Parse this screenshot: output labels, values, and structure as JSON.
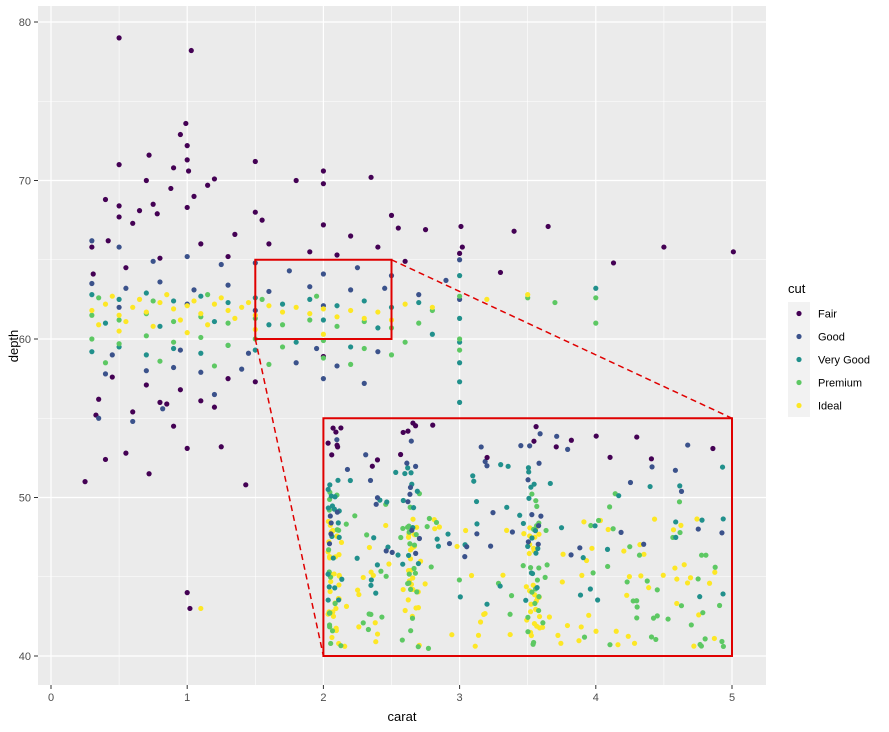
{
  "chart_data": {
    "type": "scatter",
    "xlabel": "carat",
    "ylabel": "depth",
    "xlim": [
      0,
      5
    ],
    "ylim": [
      40,
      80
    ],
    "x_ticks": [
      0,
      1,
      2,
      3,
      4,
      5
    ],
    "y_ticks": [
      40,
      50,
      60,
      70,
      80
    ],
    "grid": true,
    "legend": {
      "title": "cut",
      "position": "right",
      "entries": [
        "Fair",
        "Good",
        "Very Good",
        "Premium",
        "Ideal"
      ]
    },
    "colors": {
      "Fair": "#440154",
      "Good": "#3b528b",
      "Very Good": "#21908c",
      "Premium": "#5dc863",
      "Ideal": "#fde725",
      "panel": "#ebebeb",
      "grid": "#ffffff",
      "zoom_box": "#e00000"
    },
    "zoom": {
      "source_x": [
        1.5,
        2.5
      ],
      "source_y": [
        60,
        65
      ],
      "inset_x": [
        2,
        5
      ],
      "inset_y": [
        40,
        55
      ]
    },
    "series": [
      {
        "name": "Fair",
        "points": [
          [
            0.5,
            79
          ],
          [
            1.03,
            78.2
          ],
          [
            0.99,
            73.6
          ],
          [
            0.95,
            72.9
          ],
          [
            1.0,
            72.2
          ],
          [
            1.5,
            71.2
          ],
          [
            0.5,
            71.0
          ],
          [
            0.9,
            70.8
          ],
          [
            1.01,
            70.6
          ],
          [
            0.72,
            71.6
          ],
          [
            2.0,
            70.6
          ],
          [
            1.2,
            70.1
          ],
          [
            0.7,
            70.0
          ],
          [
            2.35,
            70.2
          ],
          [
            1.8,
            70.0
          ],
          [
            2.0,
            69.8
          ],
          [
            0.4,
            68.8
          ],
          [
            0.5,
            68.4
          ],
          [
            1.0,
            68.3
          ],
          [
            0.75,
            68.5
          ],
          [
            1.5,
            68.0
          ],
          [
            2.5,
            67.8
          ],
          [
            3.01,
            67.1
          ],
          [
            3.4,
            66.8
          ],
          [
            3.65,
            67.1
          ],
          [
            4.5,
            65.8
          ],
          [
            5.01,
            65.5
          ],
          [
            4.13,
            64.8
          ],
          [
            2.75,
            66.9
          ],
          [
            2.0,
            67.2
          ],
          [
            1.55,
            67.5
          ],
          [
            0.31,
            64.1
          ],
          [
            0.55,
            64.5
          ],
          [
            0.8,
            65.1
          ],
          [
            1.1,
            66.0
          ],
          [
            1.3,
            65.2
          ],
          [
            2.2,
            66.5
          ],
          [
            0.33,
            55.2
          ],
          [
            0.4,
            52.4
          ],
          [
            0.55,
            52.8
          ],
          [
            0.72,
            51.5
          ],
          [
            0.25,
            51.0
          ],
          [
            0.9,
            54.5
          ],
          [
            1.0,
            53.1
          ],
          [
            1.25,
            53.2
          ],
          [
            1.43,
            50.8
          ],
          [
            0.8,
            56.0
          ],
          [
            1.1,
            56.1
          ],
          [
            1.02,
            43.0
          ],
          [
            1.0,
            44.0
          ],
          [
            0.35,
            56.2
          ],
          [
            0.6,
            55.4
          ],
          [
            0.85,
            55.9
          ],
          [
            1.2,
            55.7
          ],
          [
            1.5,
            57.3
          ],
          [
            0.45,
            57.6
          ],
          [
            0.7,
            57.1
          ],
          [
            0.95,
            56.8
          ],
          [
            1.3,
            57.5
          ],
          [
            2.0,
            58.9
          ],
          [
            0.3,
            65.8
          ],
          [
            0.42,
            66.2
          ],
          [
            0.6,
            67.3
          ],
          [
            0.78,
            67.9
          ],
          [
            1.05,
            69.0
          ],
          [
            1.35,
            66.6
          ],
          [
            1.6,
            66.0
          ],
          [
            1.9,
            65.5
          ],
          [
            2.1,
            65.3
          ],
          [
            2.4,
            65.8
          ],
          [
            2.6,
            64.9
          ],
          [
            3.0,
            65.4
          ],
          [
            3.3,
            64.2
          ],
          [
            0.5,
            67.7
          ],
          [
            0.88,
            69.5
          ],
          [
            1.0,
            71.3
          ],
          [
            1.15,
            69.7
          ],
          [
            0.65,
            68.1
          ],
          [
            2.55,
            67.0
          ],
          [
            3.02,
            65.8
          ]
        ]
      },
      {
        "name": "Good",
        "points": [
          [
            0.3,
            66.2
          ],
          [
            0.5,
            65.8
          ],
          [
            0.75,
            64.9
          ],
          [
            1.0,
            65.2
          ],
          [
            1.25,
            64.7
          ],
          [
            1.5,
            64.8
          ],
          [
            1.75,
            64.3
          ],
          [
            2.0,
            64.1
          ],
          [
            2.25,
            64.5
          ],
          [
            2.5,
            64.0
          ],
          [
            0.4,
            57.8
          ],
          [
            0.7,
            58.0
          ],
          [
            0.9,
            58.2
          ],
          [
            1.1,
            57.9
          ],
          [
            1.4,
            58.1
          ],
          [
            1.8,
            58.5
          ],
          [
            2.1,
            58.3
          ],
          [
            0.35,
            55.0
          ],
          [
            0.6,
            54.8
          ],
          [
            0.82,
            55.6
          ],
          [
            1.2,
            56.5
          ],
          [
            2.0,
            57.5
          ],
          [
            2.3,
            57.2
          ],
          [
            0.3,
            63.5
          ],
          [
            0.55,
            63.2
          ],
          [
            0.8,
            63.6
          ],
          [
            1.05,
            63.1
          ],
          [
            1.3,
            63.4
          ],
          [
            1.6,
            63.0
          ],
          [
            1.9,
            63.3
          ],
          [
            2.2,
            63.1
          ],
          [
            2.45,
            63.2
          ],
          [
            2.7,
            62.8
          ],
          [
            3.0,
            62.5
          ],
          [
            3.0,
            65.0
          ],
          [
            2.9,
            63.7
          ],
          [
            0.45,
            59.0
          ],
          [
            0.95,
            59.3
          ],
          [
            1.45,
            59.1
          ],
          [
            1.95,
            59.4
          ],
          [
            2.4,
            59.2
          ],
          [
            0.5,
            62.0
          ],
          [
            1.0,
            62.2
          ],
          [
            1.5,
            61.8
          ],
          [
            2.0,
            62.1
          ]
        ]
      },
      {
        "name": "Very Good",
        "points": [
          [
            0.3,
            62.8
          ],
          [
            0.5,
            62.5
          ],
          [
            0.7,
            62.9
          ],
          [
            0.9,
            62.4
          ],
          [
            1.1,
            62.7
          ],
          [
            1.3,
            62.3
          ],
          [
            1.5,
            62.6
          ],
          [
            1.7,
            62.2
          ],
          [
            1.9,
            62.5
          ],
          [
            2.1,
            62.1
          ],
          [
            2.3,
            62.4
          ],
          [
            2.5,
            62.0
          ],
          [
            2.7,
            62.3
          ],
          [
            0.3,
            59.2
          ],
          [
            0.5,
            59.5
          ],
          [
            0.7,
            59.0
          ],
          [
            0.9,
            59.4
          ],
          [
            1.1,
            59.1
          ],
          [
            1.3,
            59.6
          ],
          [
            1.5,
            59.3
          ],
          [
            1.8,
            59.8
          ],
          [
            2.2,
            59.5
          ],
          [
            3.0,
            64.0
          ],
          [
            3.0,
            61.3
          ],
          [
            3.0,
            56.0
          ],
          [
            3.0,
            57.3
          ],
          [
            2.8,
            60.3
          ],
          [
            4.0,
            63.2
          ],
          [
            0.4,
            61.0
          ],
          [
            0.8,
            60.8
          ],
          [
            1.2,
            61.1
          ],
          [
            1.6,
            60.9
          ],
          [
            2.0,
            61.2
          ],
          [
            2.4,
            60.7
          ],
          [
            3.0,
            59.8
          ],
          [
            3.0,
            58.5
          ]
        ]
      },
      {
        "name": "Premium",
        "points": [
          [
            0.3,
            61.5
          ],
          [
            0.5,
            61.2
          ],
          [
            0.7,
            61.6
          ],
          [
            0.9,
            61.1
          ],
          [
            1.1,
            61.4
          ],
          [
            1.3,
            61.0
          ],
          [
            1.5,
            61.3
          ],
          [
            1.7,
            60.9
          ],
          [
            1.9,
            61.2
          ],
          [
            2.1,
            60.8
          ],
          [
            2.3,
            61.1
          ],
          [
            2.5,
            60.7
          ],
          [
            2.7,
            61.0
          ],
          [
            0.3,
            60.0
          ],
          [
            0.5,
            59.7
          ],
          [
            0.7,
            60.2
          ],
          [
            0.9,
            59.8
          ],
          [
            1.1,
            60.1
          ],
          [
            1.3,
            59.6
          ],
          [
            1.5,
            60.0
          ],
          [
            1.7,
            59.5
          ],
          [
            2.0,
            59.9
          ],
          [
            2.3,
            59.4
          ],
          [
            2.6,
            59.8
          ],
          [
            3.0,
            62.7
          ],
          [
            3.0,
            60.0
          ],
          [
            3.5,
            62.6
          ],
          [
            3.7,
            62.3
          ],
          [
            4.0,
            62.6
          ],
          [
            4.0,
            61.0
          ],
          [
            3.0,
            59.3
          ],
          [
            2.8,
            61.8
          ],
          [
            2.5,
            59.0
          ],
          [
            0.4,
            58.5
          ],
          [
            0.8,
            58.6
          ],
          [
            1.2,
            58.3
          ],
          [
            1.6,
            58.4
          ],
          [
            2.0,
            58.8
          ],
          [
            2.2,
            58.4
          ],
          [
            0.35,
            62.6
          ],
          [
            0.75,
            62.4
          ],
          [
            1.15,
            62.8
          ],
          [
            1.55,
            62.5
          ],
          [
            1.95,
            62.7
          ]
        ]
      },
      {
        "name": "Ideal",
        "points": [
          [
            0.3,
            61.8
          ],
          [
            0.4,
            62.2
          ],
          [
            0.5,
            61.5
          ],
          [
            0.6,
            62.0
          ],
          [
            0.7,
            61.7
          ],
          [
            0.8,
            62.3
          ],
          [
            0.9,
            61.9
          ],
          [
            1.0,
            62.1
          ],
          [
            1.1,
            61.6
          ],
          [
            1.2,
            62.2
          ],
          [
            1.3,
            61.8
          ],
          [
            1.4,
            62.0
          ],
          [
            1.5,
            61.5
          ],
          [
            1.6,
            62.1
          ],
          [
            1.7,
            61.7
          ],
          [
            1.8,
            62.0
          ],
          [
            1.9,
            61.6
          ],
          [
            2.0,
            61.9
          ],
          [
            2.1,
            61.4
          ],
          [
            2.2,
            61.8
          ],
          [
            2.3,
            61.3
          ],
          [
            2.4,
            61.7
          ],
          [
            0.35,
            60.9
          ],
          [
            0.55,
            61.1
          ],
          [
            0.75,
            60.8
          ],
          [
            0.95,
            61.2
          ],
          [
            1.15,
            60.9
          ],
          [
            1.35,
            61.3
          ],
          [
            0.45,
            62.7
          ],
          [
            0.65,
            62.5
          ],
          [
            0.85,
            62.8
          ],
          [
            1.05,
            62.4
          ],
          [
            1.25,
            62.6
          ],
          [
            1.45,
            62.3
          ],
          [
            1.1,
            43.0
          ],
          [
            3.2,
            62.5
          ],
          [
            3.5,
            62.8
          ],
          [
            2.6,
            62.2
          ],
          [
            2.8,
            62.0
          ],
          [
            2.5,
            61.2
          ],
          [
            0.5,
            60.5
          ],
          [
            1.0,
            60.4
          ],
          [
            1.5,
            60.6
          ],
          [
            2.0,
            60.3
          ]
        ]
      }
    ]
  }
}
